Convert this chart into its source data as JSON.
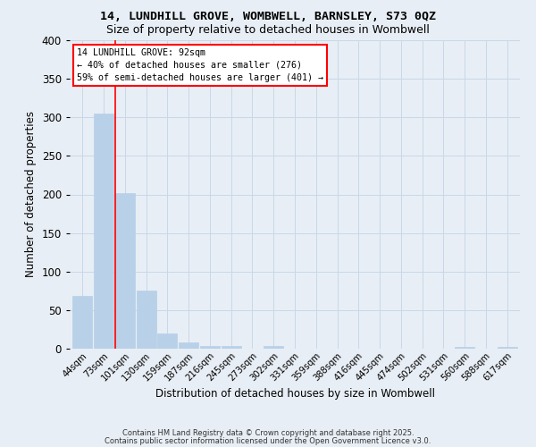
{
  "title1": "14, LUNDHILL GROVE, WOMBWELL, BARNSLEY, S73 0QZ",
  "title2": "Size of property relative to detached houses in Wombwell",
  "xlabel": "Distribution of detached houses by size in Wombwell",
  "ylabel": "Number of detached properties",
  "categories": [
    "44sqm",
    "73sqm",
    "101sqm",
    "130sqm",
    "159sqm",
    "187sqm",
    "216sqm",
    "245sqm",
    "273sqm",
    "302sqm",
    "331sqm",
    "359sqm",
    "388sqm",
    "416sqm",
    "445sqm",
    "474sqm",
    "502sqm",
    "531sqm",
    "560sqm",
    "588sqm",
    "617sqm"
  ],
  "values": [
    68,
    305,
    202,
    75,
    20,
    8,
    4,
    4,
    0,
    4,
    0,
    0,
    0,
    0,
    0,
    0,
    0,
    0,
    2,
    0,
    2
  ],
  "bar_color": "#b8d0e8",
  "bar_edge_color": "#b8d0e8",
  "grid_color": "#c8d8e8",
  "background_color": "#e8eef5",
  "fig_background": "#e8eef5",
  "red_line_x": 1.55,
  "annotation_title": "14 LUNDHILL GROVE: 92sqm",
  "annotation_line1": "← 40% of detached houses are smaller (276)",
  "annotation_line2": "59% of semi-detached houses are larger (401) →",
  "ylim": [
    0,
    400
  ],
  "yticks": [
    0,
    50,
    100,
    150,
    200,
    250,
    300,
    350,
    400
  ],
  "footnote1": "Contains HM Land Registry data © Crown copyright and database right 2025.",
  "footnote2": "Contains public sector information licensed under the Open Government Licence v3.0."
}
